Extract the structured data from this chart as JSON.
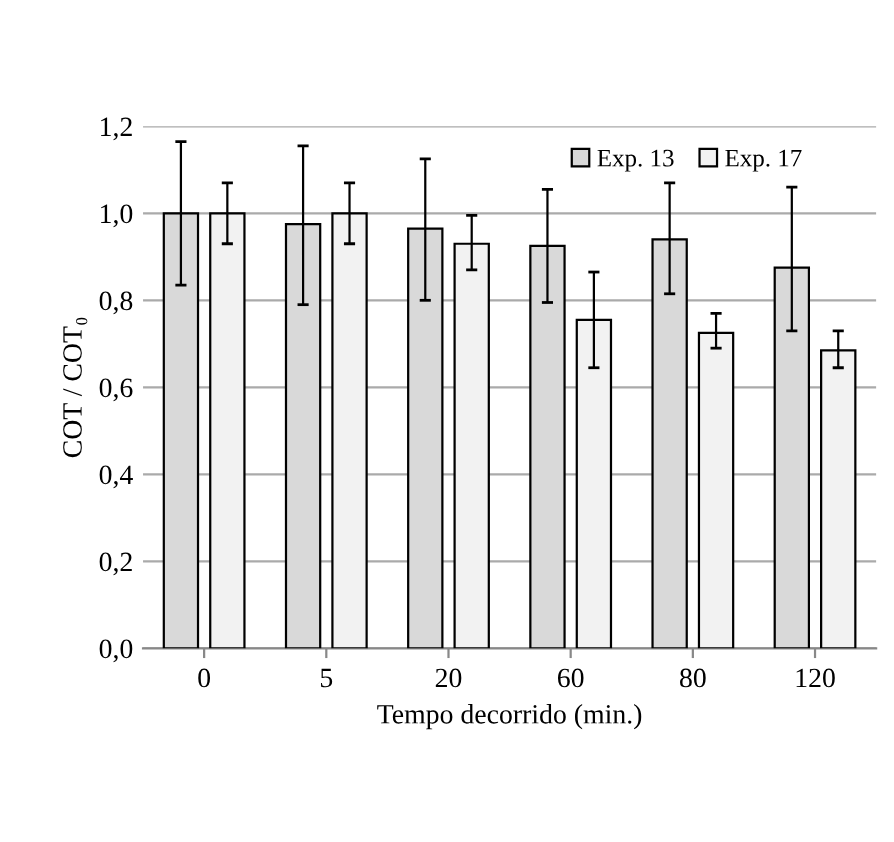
{
  "chart_data": {
    "type": "bar",
    "xlabel": "Tempo decorrido (min.)",
    "ylabel": "COT / COT₀",
    "categories": [
      "0",
      "5",
      "20",
      "60",
      "80",
      "120"
    ],
    "series": [
      {
        "name": "Exp. 13",
        "color": "#d9d9d9",
        "values": [
          1.0,
          0.975,
          0.965,
          0.925,
          0.94,
          0.875
        ],
        "errors": [
          [
            0.835,
            1.165
          ],
          [
            0.79,
            1.155
          ],
          [
            0.8,
            1.125
          ],
          [
            0.795,
            1.055
          ],
          [
            0.815,
            1.07
          ],
          [
            0.73,
            1.06
          ]
        ]
      },
      {
        "name": "Exp. 17",
        "color": "#f2f2f2",
        "values": [
          1.0,
          1.0,
          0.93,
          0.755,
          0.725,
          0.685
        ],
        "errors": [
          [
            0.93,
            1.07
          ],
          [
            0.93,
            1.07
          ],
          [
            0.87,
            0.995
          ],
          [
            0.645,
            0.865
          ],
          [
            0.69,
            0.77
          ],
          [
            0.645,
            0.73
          ]
        ]
      }
    ],
    "ylim": [
      0,
      1.2
    ],
    "yticks": [
      {
        "value": 0,
        "label": "0,0"
      },
      {
        "value": 0.2,
        "label": "0,2"
      },
      {
        "value": 0.4,
        "label": "0,4"
      },
      {
        "value": 0.6,
        "label": "0,6"
      },
      {
        "value": 0.8,
        "label": "0,8"
      },
      {
        "value": 1.0,
        "label": "1,0"
      },
      {
        "value": 1.2,
        "label": "1,2"
      }
    ],
    "grid": "y",
    "legend": "top right"
  }
}
